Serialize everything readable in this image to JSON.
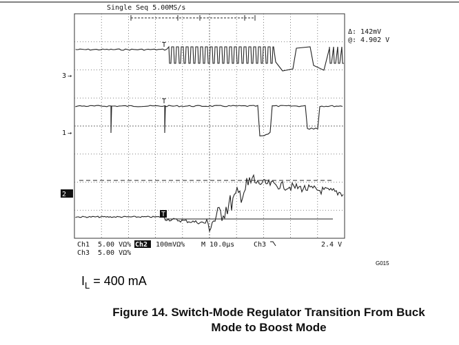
{
  "scope": {
    "acquisition": "Single Seq 5.00MS/s",
    "cursor_delta": "Δ: 142mV",
    "cursor_at": "@: 4.902 V",
    "channel_markers": [
      "3",
      "1",
      "2"
    ],
    "trigger_marks": [
      "T",
      "T",
      "T"
    ],
    "status_row1": [
      "Ch1",
      "5.00 VΩ%",
      "Ch2",
      "100mVΩ%",
      "M 10.0µs",
      "Ch3",
      "2.4 V"
    ],
    "status_row2": [
      "Ch3",
      "5.00 VΩ%"
    ]
  },
  "figure_id": "G015",
  "current_label": {
    "symbol": "I",
    "subscript": "L",
    "text": " = 400 mA"
  },
  "caption": [
    "Figure 14. Switch-Mode Regulator Transition From Buck",
    "Mode to Boost Mode"
  ]
}
